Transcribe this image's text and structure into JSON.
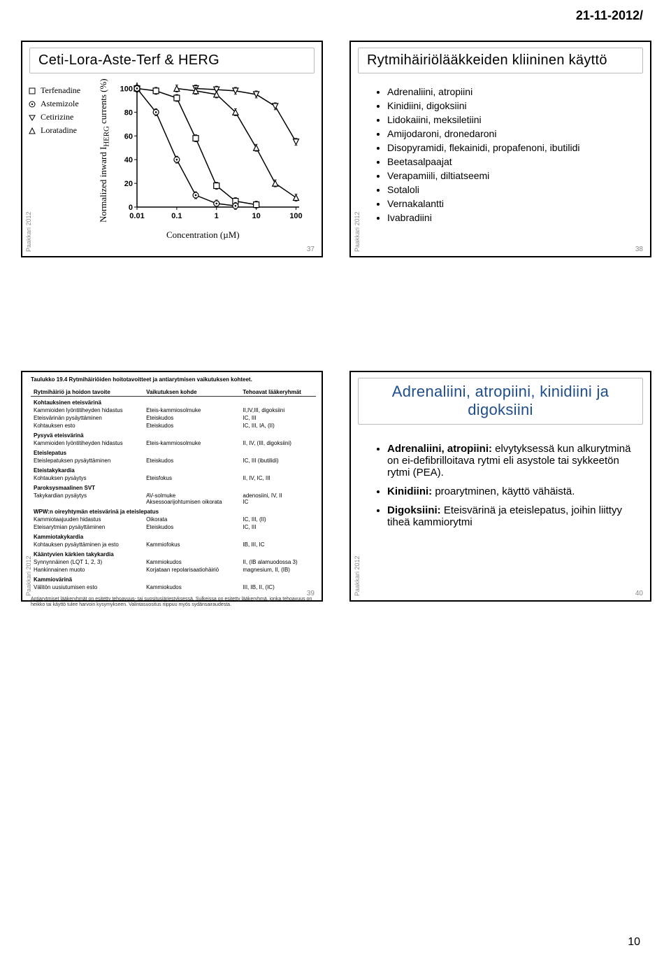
{
  "page_header": "21-11-2012/",
  "page_footer": "10",
  "slide37": {
    "title": "Ceti-Lora-Aste-Terf & HERG",
    "legend": [
      "Terfenadine",
      "Astemizole",
      "Cetirizine",
      "Loratadine"
    ],
    "ylabel": "Normalized inward IHERG currents (%)",
    "xlabel": "Concentration (µM)",
    "slide_number": "37",
    "side_text": "Paakkari 2012",
    "chart": {
      "type": "line",
      "xscale": "log",
      "xticks": [
        0.01,
        0.1,
        1,
        10,
        100
      ],
      "yticks": [
        0,
        20,
        40,
        60,
        80,
        100
      ],
      "ylim": [
        0,
        105
      ],
      "xlim": [
        0.01,
        120
      ],
      "background": "#ffffff",
      "axis_color": "#000000",
      "series": [
        {
          "name": "Terfenadine",
          "marker": "square-open",
          "color": "#000000",
          "x": [
            0.01,
            0.03,
            0.1,
            0.3,
            1,
            3,
            10
          ],
          "y": [
            100,
            98,
            92,
            58,
            18,
            5,
            2
          ]
        },
        {
          "name": "Astemizole",
          "marker": "circle-open-dot",
          "color": "#000000",
          "x": [
            0.01,
            0.03,
            0.1,
            0.3,
            1,
            3
          ],
          "y": [
            100,
            80,
            40,
            10,
            3,
            1
          ]
        },
        {
          "name": "Cetirizine",
          "marker": "triangle-down-open",
          "color": "#000000",
          "x": [
            0.3,
            1,
            3,
            10,
            30,
            100
          ],
          "y": [
            100,
            99,
            98,
            95,
            85,
            55
          ]
        },
        {
          "name": "Loratadine",
          "marker": "triangle-up-open",
          "color": "#000000",
          "x": [
            0.1,
            0.3,
            1,
            3,
            10,
            30,
            100
          ],
          "y": [
            100,
            98,
            95,
            80,
            50,
            20,
            8
          ]
        }
      ]
    }
  },
  "slide38": {
    "title": "Rytmihäiriölääkkeiden kliininen käyttö",
    "bullets": [
      "Adrenaliini, atropiini",
      "Kinidiini, digoksiini",
      "Lidokaiini, meksiletiini",
      "Amijodaroni, dronedaroni",
      "Disopyramidi, flekainidi, propafenoni, ibutilidi",
      "Beetasalpaajat",
      "Verapamiili, diltiatseemi",
      "Sotaloli",
      "Vernakalantti",
      "Ivabradiini"
    ],
    "slide_number": "38",
    "side_text": "Paakkari 2012"
  },
  "slide39": {
    "caption": "Taulukko 19.4 Rytmihäiriöiden hoitotavoitteet ja antiarytmisen vaikutuksen kohteet.",
    "headers": [
      "Rytmihäiriö ja hoidon tavoite",
      "Vaikutuksen kohde",
      "Tehoavat lääkeryhmät"
    ],
    "sections": [
      {
        "title": "Kohtauksinen eteisvärinä",
        "rows": [
          [
            "Kammioiden lyöntitiheyden hidastus",
            "Eteis-kammiosolmuke",
            "II,IV,III, digoksiini"
          ],
          [
            "Eteisvärinän pysäyttäminen",
            "Eteiskudos",
            "IC, III"
          ],
          [
            "Kohtauksen esto",
            "Eteiskudos",
            "IC, III, IA, (II)"
          ]
        ]
      },
      {
        "title": "Pysyvä eteisvärinä",
        "rows": [
          [
            "Kammioiden lyöntitiheyden hidastus",
            "Eteis-kammiosolmuke",
            "II, IV, (III, digoksiini)"
          ]
        ]
      },
      {
        "title": "Eteislepatus",
        "rows": [
          [
            "Eteislepatuksen pysäyttäminen",
            "Eteiskudos",
            "IC, III (ibutilidi)"
          ]
        ]
      },
      {
        "title": "Eteistakykardia",
        "rows": [
          [
            "Kohtauksen pysäytys",
            "Eteisfokus",
            "II, IV, IC, III"
          ]
        ]
      },
      {
        "title": "Paroksysmaalinen SVT",
        "rows": [
          [
            "Takykardian pysäytys",
            "AV-solmuke\nAksessoarijohtumisen oikorata",
            "adenosiini, IV, II\nIC"
          ]
        ]
      },
      {
        "title": "WPW:n oireyhtymän eteisvärinä ja eteislepatus",
        "rows": [
          [
            "Kammiotaajuuden hidastus",
            "Oikorata",
            "IC, III, (II)"
          ],
          [
            "Eteisarytmian pysäyttäminen",
            "Eteiskudos",
            "IC, III"
          ]
        ]
      },
      {
        "title": "Kammiotakykardia",
        "rows": [
          [
            "Kohtauksen pysäyttäminen ja esto",
            "Kammiofokus",
            "IB, III, IC"
          ]
        ]
      },
      {
        "title": "Kääntyvien kärkien takykardia",
        "rows": [
          [
            "Synnynnäinen (LQT 1, 2, 3)",
            "Kammiokudos",
            "II, (IB alamuodossa 3)"
          ],
          [
            "Hankinnainen muoto",
            "Korjataan repolarisaatiohäiriö",
            "magnesium, II, (IB)"
          ]
        ]
      },
      {
        "title": "Kammiovärinä",
        "rows": [
          [
            "Välitön uusiutumisen esto",
            "Kammiokudos",
            "III, IB, II, (IC)"
          ]
        ]
      }
    ],
    "footer": "Antiarytmiset lääkeryhmät on esitetty tehoavuus- tai suositusjärjestyksessä. Sulkeissa on esitetty lääkeryhmä, jonka tehoavuus on heikko tai käyttö tulee harvoin kysymykseen. Valintasuositus riippuu myös sydänsairaudesta.",
    "slide_number": "39",
    "side_text": "Paakkari 2012"
  },
  "slide40": {
    "title": "Adrenaliini, atropiini, kinidiini ja digoksiini",
    "bullets_html": [
      "<b>Adrenaliini, atropiini:</b> elvytyksessä kun alkurytminä on ei-defibrilloitava rytmi eli asystole tai sykkeetön rytmi (PEA).",
      "<b>Kinidiini:</b> proarytminen, käyttö vähäistä.",
      "<b>Digoksiini:</b> Eteisvärinä ja eteislepatus, joihin liittyy tiheä kammiorytmi"
    ],
    "slide_number": "40",
    "side_text": "Paakkari 2012"
  }
}
